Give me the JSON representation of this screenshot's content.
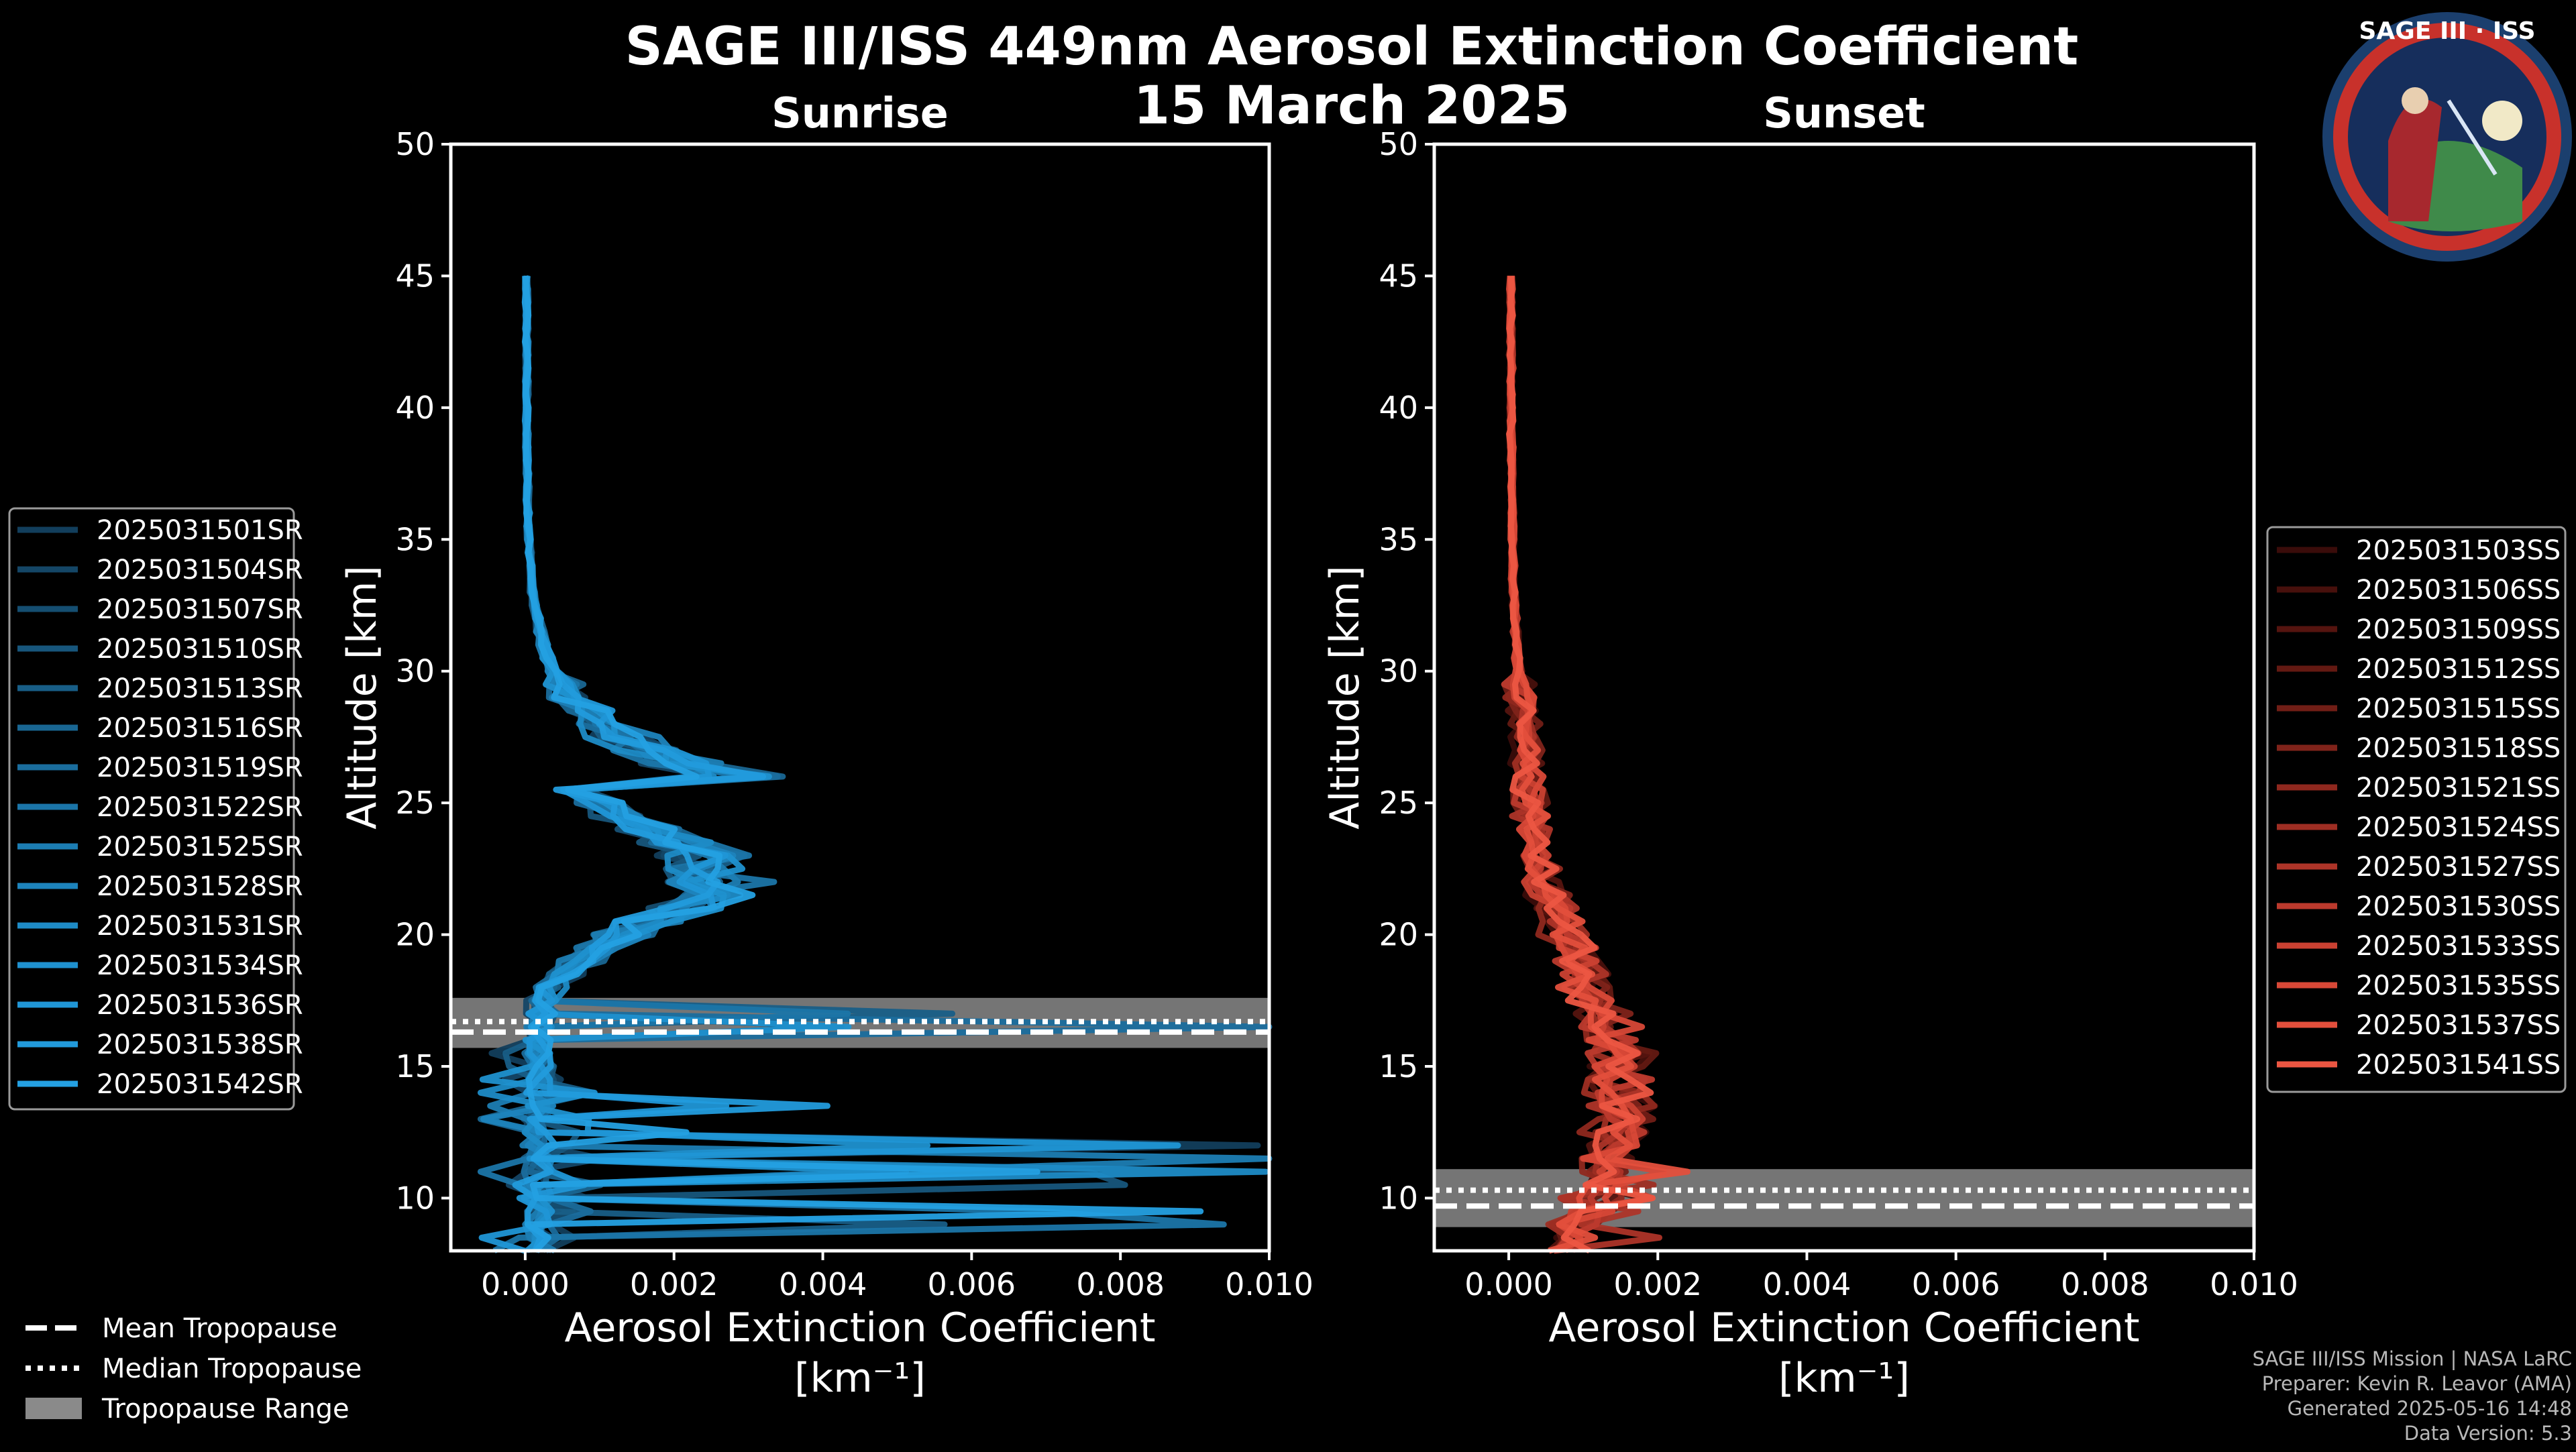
{
  "title": {
    "main": "SAGE III/ISS 449nm Aerosol Extinction Coefficient",
    "date": "15 March 2025"
  },
  "logo": {
    "text": "SAGE III · ISS",
    "icon": "sage-iii-iss-mission-patch"
  },
  "colors": {
    "background": "#000000",
    "sunrise": "#1f8fd0",
    "sunset": "#e8503a",
    "tropopause_band": "#8a8a8a"
  },
  "chart_data": [
    {
      "type": "line",
      "panel": "Sunrise",
      "title": "Sunrise",
      "xlabel": "Aerosol Extinction Coefficient",
      "xunit": "[km⁻¹]",
      "ylabel": "Altitude [km]",
      "xlim": [
        -0.001,
        0.01
      ],
      "ylim": [
        8,
        50
      ],
      "xticks": [
        "0.000",
        "0.002",
        "0.004",
        "0.006",
        "0.008",
        "0.010"
      ],
      "xtick_values": [
        0,
        0.002,
        0.004,
        0.006,
        0.008,
        0.01
      ],
      "yticks": [
        10,
        15,
        20,
        25,
        30,
        35,
        40,
        45,
        50
      ],
      "tropopause": {
        "mean": 16.3,
        "median": 16.7,
        "range": [
          15.7,
          17.6
        ]
      },
      "legend_position": "left",
      "series": [
        {
          "name": "2025031501SR",
          "color": "#123e5c"
        },
        {
          "name": "2025031504SR",
          "color": "#144666"
        },
        {
          "name": "2025031507SR",
          "color": "#154e71"
        },
        {
          "name": "2025031510SR",
          "color": "#17567c"
        },
        {
          "name": "2025031513SR",
          "color": "#185e87"
        },
        {
          "name": "2025031516SR",
          "color": "#196692"
        },
        {
          "name": "2025031519SR",
          "color": "#1a6d9d"
        },
        {
          "name": "2025031522SR",
          "color": "#1b75a8"
        },
        {
          "name": "2025031525SR",
          "color": "#1c7db3"
        },
        {
          "name": "2025031528SR",
          "color": "#1d84bd"
        },
        {
          "name": "2025031531SR",
          "color": "#1e8bc6"
        },
        {
          "name": "2025031534SR",
          "color": "#1f91cf"
        },
        {
          "name": "2025031536SR",
          "color": "#2096d6"
        },
        {
          "name": "2025031538SR",
          "color": "#229bdc"
        },
        {
          "name": "2025031542SR",
          "color": "#24a0e2"
        }
      ]
    },
    {
      "type": "line",
      "panel": "Sunset",
      "title": "Sunset",
      "xlabel": "Aerosol Extinction Coefficient",
      "xunit": "[km⁻¹]",
      "ylabel": "Altitude [km]",
      "xlim": [
        -0.001,
        0.01
      ],
      "ylim": [
        8,
        50
      ],
      "xticks": [
        "0.000",
        "0.002",
        "0.004",
        "0.006",
        "0.008",
        "0.010"
      ],
      "xtick_values": [
        0,
        0.002,
        0.004,
        0.006,
        0.008,
        0.01
      ],
      "yticks": [
        10,
        15,
        20,
        25,
        30,
        35,
        40,
        45,
        50
      ],
      "tropopause": {
        "mean": 9.7,
        "median": 10.3,
        "range": [
          8.9,
          11.1
        ]
      },
      "legend_position": "right",
      "series": [
        {
          "name": "2025031503SS",
          "color": "#3a0c0a"
        },
        {
          "name": "2025031506SS",
          "color": "#47100c"
        },
        {
          "name": "2025031509SS",
          "color": "#55140f"
        },
        {
          "name": "2025031512SS",
          "color": "#631912"
        },
        {
          "name": "2025031515SS",
          "color": "#711e16"
        },
        {
          "name": "2025031518SS",
          "color": "#80231a"
        },
        {
          "name": "2025031521SS",
          "color": "#8f281e"
        },
        {
          "name": "2025031524SS",
          "color": "#9e2e23"
        },
        {
          "name": "2025031527SS",
          "color": "#ad3428"
        },
        {
          "name": "2025031530SS",
          "color": "#bc3a2d"
        },
        {
          "name": "2025031533SS",
          "color": "#ca4132"
        },
        {
          "name": "2025031535SS",
          "color": "#d84837"
        },
        {
          "name": "2025031537SS",
          "color": "#e34f3c"
        },
        {
          "name": "2025031541SS",
          "color": "#ec5642"
        }
      ]
    }
  ],
  "bottom_legend": [
    {
      "label": "Mean Tropopause",
      "style": "dashed"
    },
    {
      "label": "Median Tropopause",
      "style": "dotted"
    },
    {
      "label": "Tropopause Range",
      "style": "band"
    }
  ],
  "credits": [
    "SAGE III/ISS Mission | NASA LaRC",
    "Preparer: Kevin R. Leavor (AMA)",
    "Generated 2025-05-16 14:48",
    "Data Version: 5.3"
  ]
}
